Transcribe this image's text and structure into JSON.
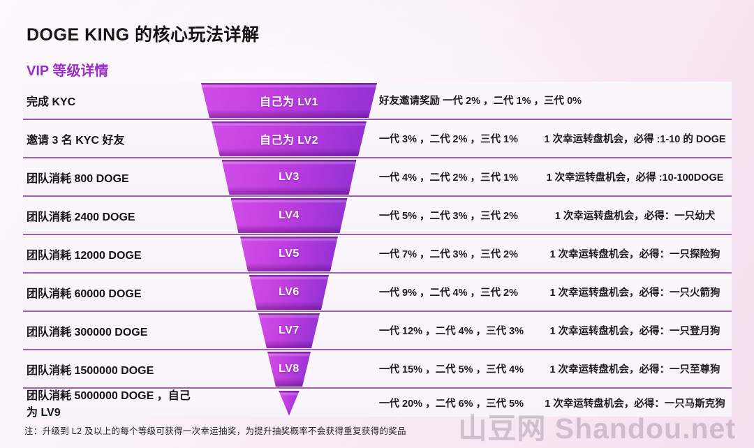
{
  "title": "DOGE KING 的核心玩法详解",
  "subtitle": "VIP 等级详情",
  "colors": {
    "accent_purple": "#9a2fc6",
    "funnel_magenta": "#c23fe0",
    "funnel_purple": "#9230d4",
    "separator": "#a35cb5",
    "watermark_gray": "#d5d5d8"
  },
  "rows": [
    {
      "condition": "完成 KYC",
      "level_label": "自己为 LV1",
      "rates": "好友邀请奖励 一代 2% ，二代 1% ，三代 0%",
      "wheel": ""
    },
    {
      "condition": "邀请 3 名 KYC 好友",
      "level_label": "自己为 LV2",
      "rates": "一代 3% ，二代 2% ，三代 1%",
      "wheel": "1 次幸运转盘机会，必得 :1-10 的 DOGE"
    },
    {
      "condition": "团队消耗 800 DOGE",
      "level_label": "LV3",
      "rates": "一代 4% ，二代 2% ，三代 1%",
      "wheel": "1 次幸运转盘机会，必得 :10-100DOGE"
    },
    {
      "condition": "团队消耗 2400 DOGE",
      "level_label": "LV4",
      "rates": "一代 5% ，二代 3% ，三代 2%",
      "wheel": "1 次幸运转盘机会，必得：一只幼犬"
    },
    {
      "condition": "团队消耗 12000 DOGE",
      "level_label": "LV5",
      "rates": "一代 7% ，二代 3% ，三代 2%",
      "wheel": "1 次幸运转盘机会，必得：一只探险狗"
    },
    {
      "condition": "团队消耗 60000 DOGE",
      "level_label": "LV6",
      "rates": "一代 9% ，二代 4% ，三代 2%",
      "wheel": "1 次幸运转盘机会，必得：一只火箭狗"
    },
    {
      "condition": "团队消耗 300000 DOGE",
      "level_label": "LV7",
      "rates": "一代 12% ，二代 4% ，三代 3%",
      "wheel": "1 次幸运转盘机会，必得：一只登月狗"
    },
    {
      "condition": "团队消耗 1500000 DOGE",
      "level_label": "LV8",
      "rates": "一代 15% ，二代 5% ，三代 4%",
      "wheel": "1 次幸运转盘机会，必得：一只至尊狗"
    },
    {
      "condition": "团队消耗 5000000 DOGE ，自己为 LV9",
      "level_label": "",
      "rates": "一代 20% ，二代 6% ，三代 5%",
      "wheel": "1 次幸运转盘机会，必得：一只马斯克狗"
    }
  ],
  "note": "注：升级到 L2 及以上的每个等级可获得一次幸运抽奖，为提升抽奖概率不会获得重复获得的奖品",
  "watermark": "山豆网 Shandou.net"
}
